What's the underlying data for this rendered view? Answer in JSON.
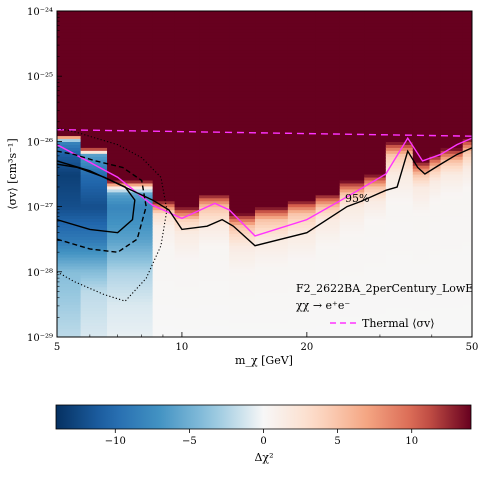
{
  "chart_data": {
    "type": "heatmap",
    "title": "",
    "xlabel": "m_χ [GeV]",
    "ylabel": "⟨σv⟩ [cm³s⁻¹]",
    "x_scale": "log",
    "y_scale": "log",
    "xlim": [
      5,
      50
    ],
    "ylim": [
      1e-29,
      1e-24
    ],
    "x_ticks": [
      5,
      10,
      20,
      50
    ],
    "x_tick_labels": [
      "5",
      "10",
      "20",
      "50"
    ],
    "y_tick_exponents": [
      -29,
      -28,
      -27,
      -26,
      -25,
      -24
    ],
    "y_tick_labels": [
      "10⁻²⁹",
      "10⁻²⁸",
      "10⁻²⁷",
      "10⁻²⁶",
      "10⁻²⁵",
      "10⁻²⁴"
    ],
    "annotations": {
      "line1": "F2_2622BA_2perCentury_LowE",
      "line2": "χχ → e⁺e⁻",
      "contour_label": "95%"
    },
    "legend": {
      "placement": "lower-right",
      "entries": [
        {
          "label": "Thermal ⟨σv⟩",
          "color": "#ff33ff",
          "style": "dashed"
        }
      ]
    },
    "colorbar": {
      "label": "Δχ²",
      "min": -14,
      "max": 14,
      "ticks": [
        -10,
        -5,
        0,
        5,
        10
      ],
      "tick_labels": [
        "−10",
        "−5",
        "0",
        "5",
        "10"
      ],
      "colormap": "RdBu_r"
    },
    "columns": [
      {
        "x_start": 5.0,
        "x_end": 5.7,
        "edge": -25.9,
        "values": [
          [
            -29,
            -2
          ],
          [
            -28,
            -4
          ],
          [
            -27.5,
            -9
          ],
          [
            -27,
            -12
          ],
          [
            -26.5,
            -13
          ],
          [
            -26.2,
            -11
          ],
          [
            -26.0,
            -8
          ],
          [
            -25.9,
            14
          ]
        ]
      },
      {
        "x_start": 5.7,
        "x_end": 6.6,
        "edge": -26.1,
        "values": [
          [
            -29,
            -1
          ],
          [
            -28.3,
            -2
          ],
          [
            -28,
            -4
          ],
          [
            -27.5,
            -9
          ],
          [
            -27,
            -12
          ],
          [
            -26.5,
            -10
          ],
          [
            -26.2,
            -6
          ],
          [
            -26.1,
            14
          ]
        ]
      },
      {
        "x_start": 6.6,
        "x_end": 8.5,
        "edge": -26.6,
        "values": [
          [
            -29,
            -0.5
          ],
          [
            -28.5,
            -1
          ],
          [
            -28,
            -2.5
          ],
          [
            -27.5,
            -6
          ],
          [
            -27,
            -8
          ],
          [
            -26.8,
            -6
          ],
          [
            -26.7,
            2
          ],
          [
            -26.6,
            14
          ]
        ]
      },
      {
        "x_start": 8.5,
        "x_end": 9.6,
        "edge": -26.9,
        "values": [
          [
            -29,
            0
          ],
          [
            -27.6,
            0.3
          ],
          [
            -27.3,
            1
          ],
          [
            -27.1,
            3
          ],
          [
            -26.9,
            14
          ]
        ]
      },
      {
        "x_start": 9.6,
        "x_end": 11.0,
        "edge": -27.0,
        "values": [
          [
            -29,
            0
          ],
          [
            -27.8,
            0.3
          ],
          [
            -27.4,
            1.5
          ],
          [
            -27.2,
            4
          ],
          [
            -27.0,
            14
          ]
        ]
      },
      {
        "x_start": 11.0,
        "x_end": 13.0,
        "edge": -26.8,
        "values": [
          [
            -29,
            0
          ],
          [
            -27.6,
            0.3
          ],
          [
            -27.3,
            1.5
          ],
          [
            -27.0,
            5
          ],
          [
            -26.8,
            14
          ]
        ]
      },
      {
        "x_start": 13.0,
        "x_end": 15.0,
        "edge": -27.1,
        "values": [
          [
            -29,
            0
          ],
          [
            -28.0,
            0.3
          ],
          [
            -27.6,
            1.5
          ],
          [
            -27.3,
            5
          ],
          [
            -27.1,
            14
          ]
        ]
      },
      {
        "x_start": 15.0,
        "x_end": 18.0,
        "edge": -27.0,
        "values": [
          [
            -29,
            0
          ],
          [
            -27.9,
            0.3
          ],
          [
            -27.5,
            1.5
          ],
          [
            -27.2,
            5
          ],
          [
            -27.0,
            14
          ]
        ]
      },
      {
        "x_start": 18.0,
        "x_end": 21.0,
        "edge": -26.9,
        "values": [
          [
            -29,
            0
          ],
          [
            -27.8,
            0.3
          ],
          [
            -27.4,
            1.5
          ],
          [
            -27.1,
            5
          ],
          [
            -26.9,
            14
          ]
        ]
      },
      {
        "x_start": 21.0,
        "x_end": 24.0,
        "edge": -26.8,
        "values": [
          [
            -29,
            0
          ],
          [
            -27.6,
            0.3
          ],
          [
            -27.2,
            1.5
          ],
          [
            -27.0,
            5
          ],
          [
            -26.8,
            14
          ]
        ]
      },
      {
        "x_start": 24.0,
        "x_end": 27.5,
        "edge": -26.6,
        "values": [
          [
            -29,
            0
          ],
          [
            -27.4,
            0.3
          ],
          [
            -27.0,
            1.5
          ],
          [
            -26.8,
            5
          ],
          [
            -26.6,
            14
          ]
        ]
      },
      {
        "x_start": 27.5,
        "x_end": 31.0,
        "edge": -26.5,
        "values": [
          [
            -29,
            0
          ],
          [
            -27.2,
            0.3
          ],
          [
            -26.9,
            1.5
          ],
          [
            -26.7,
            5
          ],
          [
            -26.5,
            14
          ]
        ]
      },
      {
        "x_start": 31.0,
        "x_end": 36.0,
        "edge": -26.0,
        "values": [
          [
            -29,
            0
          ],
          [
            -26.9,
            0.3
          ],
          [
            -26.5,
            1.5
          ],
          [
            -26.2,
            5
          ],
          [
            -26.0,
            14
          ]
        ]
      },
      {
        "x_start": 36.0,
        "x_end": 39.5,
        "edge": -26.3,
        "values": [
          [
            -29,
            0
          ],
          [
            -27.1,
            0.3
          ],
          [
            -26.7,
            1.5
          ],
          [
            -26.5,
            5
          ],
          [
            -26.3,
            14
          ]
        ]
      },
      {
        "x_start": 39.5,
        "x_end": 42.0,
        "edge": -26.2,
        "values": [
          [
            -29,
            0
          ],
          [
            -26.9,
            0.3
          ],
          [
            -26.6,
            1.5
          ],
          [
            -26.4,
            5
          ],
          [
            -26.2,
            14
          ]
        ]
      },
      {
        "x_start": 42.0,
        "x_end": 47.5,
        "edge": -26.1,
        "values": [
          [
            -29,
            0
          ],
          [
            -26.8,
            0.3
          ],
          [
            -26.5,
            1.5
          ],
          [
            -26.3,
            5
          ],
          [
            -26.1,
            14
          ]
        ]
      },
      {
        "x_start": 47.5,
        "x_end": 50.0,
        "edge": -25.95,
        "values": [
          [
            -29,
            0
          ],
          [
            -26.7,
            0.3
          ],
          [
            -26.4,
            1.5
          ],
          [
            -26.15,
            5
          ],
          [
            -25.95,
            14
          ]
        ]
      }
    ],
    "series": [
      {
        "role": "thermal",
        "color": "#ff33ff",
        "style": "dashed",
        "points": [
          [
            5,
            -25.82
          ],
          [
            50,
            -25.92
          ]
        ]
      },
      {
        "role": "upper-limit",
        "color": "#ff33ff",
        "style": "solid",
        "points": [
          [
            5,
            -26.05
          ],
          [
            7,
            -26.55
          ],
          [
            8.5,
            -26.98
          ],
          [
            10,
            -27.18
          ],
          [
            12,
            -26.95
          ],
          [
            13,
            -27.05
          ],
          [
            15,
            -27.45
          ],
          [
            20,
            -27.2
          ],
          [
            25,
            -26.85
          ],
          [
            31,
            -26.5
          ],
          [
            35,
            -25.95
          ],
          [
            38,
            -26.3
          ],
          [
            42,
            -26.2
          ],
          [
            46,
            -26.05
          ],
          [
            50,
            -25.95
          ]
        ]
      },
      {
        "role": "contour-95",
        "color": "#000000",
        "style": "solid",
        "points": [
          [
            5,
            -26.3
          ],
          [
            6,
            -26.45
          ],
          [
            7,
            -26.65
          ],
          [
            8.5,
            -26.9
          ],
          [
            9.3,
            -27.05
          ],
          [
            10,
            -27.35
          ],
          [
            11.5,
            -27.3
          ],
          [
            12.5,
            -27.2
          ],
          [
            13.3,
            -27.3
          ],
          [
            15,
            -27.6
          ],
          [
            20,
            -27.4
          ],
          [
            25,
            -27.0
          ],
          [
            27,
            -26.92
          ],
          [
            31,
            -26.75
          ],
          [
            33,
            -26.7
          ],
          [
            35,
            -26.15
          ],
          [
            37,
            -26.4
          ],
          [
            38.5,
            -26.5
          ],
          [
            42,
            -26.35
          ],
          [
            46,
            -26.2
          ],
          [
            50,
            -26.1
          ]
        ]
      },
      {
        "role": "contour-inner-solid",
        "color": "#000000",
        "style": "solid",
        "points": [
          [
            5,
            -27.2
          ],
          [
            6,
            -27.35
          ],
          [
            7,
            -27.4
          ],
          [
            7.6,
            -27.2
          ],
          [
            7.7,
            -26.9
          ],
          [
            7.3,
            -26.7
          ],
          [
            6.5,
            -26.55
          ],
          [
            5.6,
            -26.4
          ],
          [
            5,
            -26.35
          ]
        ]
      },
      {
        "role": "contour-inner-dashed",
        "color": "#000000",
        "style": "dashed",
        "points": [
          [
            5,
            -27.5
          ],
          [
            6,
            -27.65
          ],
          [
            7,
            -27.7
          ],
          [
            7.8,
            -27.5
          ],
          [
            8.2,
            -27.0
          ],
          [
            8.0,
            -26.6
          ],
          [
            7.2,
            -26.4
          ],
          [
            6.2,
            -26.3
          ],
          [
            5.5,
            -26.2
          ],
          [
            5,
            -26.15
          ]
        ]
      },
      {
        "role": "contour-inner-dotted",
        "color": "#000000",
        "style": "dotted",
        "points": [
          [
            5,
            -28.0
          ],
          [
            5.5,
            -28.15
          ],
          [
            6.5,
            -28.35
          ],
          [
            7.3,
            -28.45
          ],
          [
            8.2,
            -28.1
          ],
          [
            8.9,
            -27.6
          ],
          [
            9.2,
            -27.05
          ],
          [
            8.9,
            -26.55
          ],
          [
            8.0,
            -26.25
          ],
          [
            7.0,
            -26.05
          ],
          [
            6.2,
            -25.95
          ],
          [
            5.5,
            -25.85
          ],
          [
            5,
            -25.8
          ]
        ]
      }
    ]
  }
}
